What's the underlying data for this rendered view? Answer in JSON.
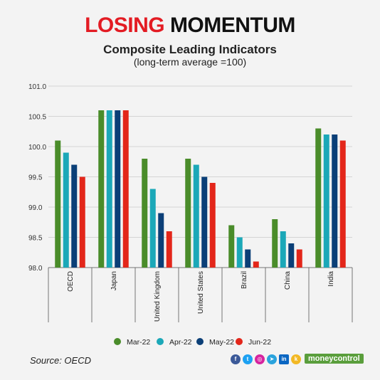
{
  "header": {
    "title_red": "LOSING",
    "title_black": "MOMENTUM",
    "subtitle": "Composite Leading Indicators",
    "subtitle2": "(long-term average =100)"
  },
  "footer": {
    "source": "Source: OECD",
    "brand": "moneycontrol",
    "social_icons": [
      "facebook-icon",
      "twitter-icon",
      "instagram-icon",
      "telegram-icon",
      "linkedin-icon",
      "koo-icon"
    ]
  },
  "colors": {
    "Mar-22": "#4a8c2a",
    "Apr-22": "#1ba8b8",
    "May-22": "#0b3f77",
    "Jun-22": "#e3261a"
  },
  "chart_data": {
    "type": "bar",
    "categories": [
      "OECD",
      "Japan",
      "United Kingdom",
      "United States",
      "Brazil",
      "China",
      "India"
    ],
    "series": [
      {
        "name": "Mar-22",
        "values": [
          100.1,
          100.6,
          99.8,
          99.8,
          98.7,
          98.8,
          100.3
        ]
      },
      {
        "name": "Apr-22",
        "values": [
          99.9,
          100.6,
          99.3,
          99.7,
          98.5,
          98.6,
          100.2
        ]
      },
      {
        "name": "May-22",
        "values": [
          99.7,
          100.6,
          98.9,
          99.5,
          98.3,
          98.4,
          100.2
        ]
      },
      {
        "name": "Jun-22",
        "values": [
          99.5,
          100.6,
          98.6,
          99.4,
          98.1,
          98.3,
          100.1
        ]
      }
    ],
    "yticks": [
      "98.0",
      "98.5",
      "99.0",
      "99.5",
      "100.0",
      "100.5",
      "101.0"
    ],
    "ylim": [
      98.0,
      101.0
    ],
    "grid": true,
    "legend": "bottom"
  }
}
